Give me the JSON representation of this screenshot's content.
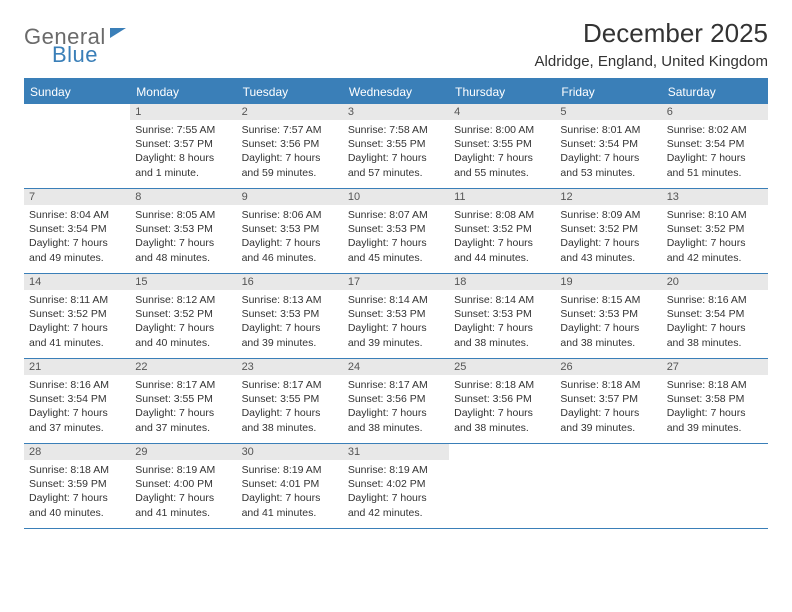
{
  "logo": {
    "text1": "General",
    "text2": "Blue"
  },
  "title": "December 2025",
  "subtitle": "Aldridge, England, United Kingdom",
  "colors": {
    "brand_blue": "#3a7fb8",
    "header_text": "#ffffff",
    "day_num_bg": "#e8e8e8",
    "body_text": "#333333",
    "logo_gray": "#6a6a6a"
  },
  "day_headers": [
    "Sunday",
    "Monday",
    "Tuesday",
    "Wednesday",
    "Thursday",
    "Friday",
    "Saturday"
  ],
  "weeks": [
    [
      {
        "empty": true
      },
      {
        "num": "1",
        "sunrise": "Sunrise: 7:55 AM",
        "sunset": "Sunset: 3:57 PM",
        "dl1": "Daylight: 8 hours",
        "dl2": "and 1 minute."
      },
      {
        "num": "2",
        "sunrise": "Sunrise: 7:57 AM",
        "sunset": "Sunset: 3:56 PM",
        "dl1": "Daylight: 7 hours",
        "dl2": "and 59 minutes."
      },
      {
        "num": "3",
        "sunrise": "Sunrise: 7:58 AM",
        "sunset": "Sunset: 3:55 PM",
        "dl1": "Daylight: 7 hours",
        "dl2": "and 57 minutes."
      },
      {
        "num": "4",
        "sunrise": "Sunrise: 8:00 AM",
        "sunset": "Sunset: 3:55 PM",
        "dl1": "Daylight: 7 hours",
        "dl2": "and 55 minutes."
      },
      {
        "num": "5",
        "sunrise": "Sunrise: 8:01 AM",
        "sunset": "Sunset: 3:54 PM",
        "dl1": "Daylight: 7 hours",
        "dl2": "and 53 minutes."
      },
      {
        "num": "6",
        "sunrise": "Sunrise: 8:02 AM",
        "sunset": "Sunset: 3:54 PM",
        "dl1": "Daylight: 7 hours",
        "dl2": "and 51 minutes."
      }
    ],
    [
      {
        "num": "7",
        "sunrise": "Sunrise: 8:04 AM",
        "sunset": "Sunset: 3:54 PM",
        "dl1": "Daylight: 7 hours",
        "dl2": "and 49 minutes."
      },
      {
        "num": "8",
        "sunrise": "Sunrise: 8:05 AM",
        "sunset": "Sunset: 3:53 PM",
        "dl1": "Daylight: 7 hours",
        "dl2": "and 48 minutes."
      },
      {
        "num": "9",
        "sunrise": "Sunrise: 8:06 AM",
        "sunset": "Sunset: 3:53 PM",
        "dl1": "Daylight: 7 hours",
        "dl2": "and 46 minutes."
      },
      {
        "num": "10",
        "sunrise": "Sunrise: 8:07 AM",
        "sunset": "Sunset: 3:53 PM",
        "dl1": "Daylight: 7 hours",
        "dl2": "and 45 minutes."
      },
      {
        "num": "11",
        "sunrise": "Sunrise: 8:08 AM",
        "sunset": "Sunset: 3:52 PM",
        "dl1": "Daylight: 7 hours",
        "dl2": "and 44 minutes."
      },
      {
        "num": "12",
        "sunrise": "Sunrise: 8:09 AM",
        "sunset": "Sunset: 3:52 PM",
        "dl1": "Daylight: 7 hours",
        "dl2": "and 43 minutes."
      },
      {
        "num": "13",
        "sunrise": "Sunrise: 8:10 AM",
        "sunset": "Sunset: 3:52 PM",
        "dl1": "Daylight: 7 hours",
        "dl2": "and 42 minutes."
      }
    ],
    [
      {
        "num": "14",
        "sunrise": "Sunrise: 8:11 AM",
        "sunset": "Sunset: 3:52 PM",
        "dl1": "Daylight: 7 hours",
        "dl2": "and 41 minutes."
      },
      {
        "num": "15",
        "sunrise": "Sunrise: 8:12 AM",
        "sunset": "Sunset: 3:52 PM",
        "dl1": "Daylight: 7 hours",
        "dl2": "and 40 minutes."
      },
      {
        "num": "16",
        "sunrise": "Sunrise: 8:13 AM",
        "sunset": "Sunset: 3:53 PM",
        "dl1": "Daylight: 7 hours",
        "dl2": "and 39 minutes."
      },
      {
        "num": "17",
        "sunrise": "Sunrise: 8:14 AM",
        "sunset": "Sunset: 3:53 PM",
        "dl1": "Daylight: 7 hours",
        "dl2": "and 39 minutes."
      },
      {
        "num": "18",
        "sunrise": "Sunrise: 8:14 AM",
        "sunset": "Sunset: 3:53 PM",
        "dl1": "Daylight: 7 hours",
        "dl2": "and 38 minutes."
      },
      {
        "num": "19",
        "sunrise": "Sunrise: 8:15 AM",
        "sunset": "Sunset: 3:53 PM",
        "dl1": "Daylight: 7 hours",
        "dl2": "and 38 minutes."
      },
      {
        "num": "20",
        "sunrise": "Sunrise: 8:16 AM",
        "sunset": "Sunset: 3:54 PM",
        "dl1": "Daylight: 7 hours",
        "dl2": "and 38 minutes."
      }
    ],
    [
      {
        "num": "21",
        "sunrise": "Sunrise: 8:16 AM",
        "sunset": "Sunset: 3:54 PM",
        "dl1": "Daylight: 7 hours",
        "dl2": "and 37 minutes."
      },
      {
        "num": "22",
        "sunrise": "Sunrise: 8:17 AM",
        "sunset": "Sunset: 3:55 PM",
        "dl1": "Daylight: 7 hours",
        "dl2": "and 37 minutes."
      },
      {
        "num": "23",
        "sunrise": "Sunrise: 8:17 AM",
        "sunset": "Sunset: 3:55 PM",
        "dl1": "Daylight: 7 hours",
        "dl2": "and 38 minutes."
      },
      {
        "num": "24",
        "sunrise": "Sunrise: 8:17 AM",
        "sunset": "Sunset: 3:56 PM",
        "dl1": "Daylight: 7 hours",
        "dl2": "and 38 minutes."
      },
      {
        "num": "25",
        "sunrise": "Sunrise: 8:18 AM",
        "sunset": "Sunset: 3:56 PM",
        "dl1": "Daylight: 7 hours",
        "dl2": "and 38 minutes."
      },
      {
        "num": "26",
        "sunrise": "Sunrise: 8:18 AM",
        "sunset": "Sunset: 3:57 PM",
        "dl1": "Daylight: 7 hours",
        "dl2": "and 39 minutes."
      },
      {
        "num": "27",
        "sunrise": "Sunrise: 8:18 AM",
        "sunset": "Sunset: 3:58 PM",
        "dl1": "Daylight: 7 hours",
        "dl2": "and 39 minutes."
      }
    ],
    [
      {
        "num": "28",
        "sunrise": "Sunrise: 8:18 AM",
        "sunset": "Sunset: 3:59 PM",
        "dl1": "Daylight: 7 hours",
        "dl2": "and 40 minutes."
      },
      {
        "num": "29",
        "sunrise": "Sunrise: 8:19 AM",
        "sunset": "Sunset: 4:00 PM",
        "dl1": "Daylight: 7 hours",
        "dl2": "and 41 minutes."
      },
      {
        "num": "30",
        "sunrise": "Sunrise: 8:19 AM",
        "sunset": "Sunset: 4:01 PM",
        "dl1": "Daylight: 7 hours",
        "dl2": "and 41 minutes."
      },
      {
        "num": "31",
        "sunrise": "Sunrise: 8:19 AM",
        "sunset": "Sunset: 4:02 PM",
        "dl1": "Daylight: 7 hours",
        "dl2": "and 42 minutes."
      },
      {
        "empty": true
      },
      {
        "empty": true
      },
      {
        "empty": true
      }
    ]
  ]
}
